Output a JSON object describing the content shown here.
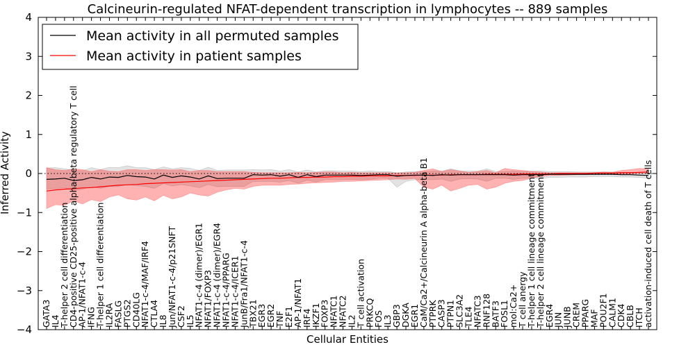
{
  "chart_data": {
    "type": "line",
    "title": "Calcineurin-regulated NFAT-dependent transcription in lymphocytes -- 889 samples",
    "xlabel": "Cellular Entities",
    "ylabel": "Inferred Activity",
    "ylim": [
      -4,
      4
    ],
    "yticks": [
      -4,
      -3,
      -2,
      -1,
      0,
      1,
      2,
      3,
      4
    ],
    "yticklabels": [
      "−4",
      "−3",
      "−2",
      "−1",
      "0",
      "1",
      "2",
      "3",
      "4"
    ],
    "grid": false,
    "legend_position": "top-left",
    "categories": [
      "GATA3",
      "IL4",
      "T-helper 2 cell differentiation",
      "CD4-positive CD25-positive alpha-beta regulatory T cell",
      "AP-1/NFAT1-c-4",
      "IFNG",
      "T-helper 1 cell differentiation",
      "IL2RA",
      "FASLG",
      "PTGS2",
      "CD40LG",
      "NFAT1-c-4/MAF/IRF4",
      "CTLA4",
      "IL8",
      "Jun/NFAT1-c-4/p21SNFT",
      "CSF2",
      "IL5",
      "NFAT1-c-4 (dimer)/EGR1",
      "NFAT1/FOXP3",
      "NFAT1-c-4 (dimer)/EGR4",
      "NFAT1-c-4/PPARG",
      "NFAT1-c-4/ICER1",
      "JunB/Fra1/NFAT1-c-4",
      "TBX21",
      "EGR3",
      "EGR2",
      "TNF",
      "E2F1",
      "AP-1/NFAT1",
      "IRF4",
      "IKZF1",
      "FOXP3",
      "NFATC1",
      "NFATC2",
      "IL2",
      "T cell activation",
      "PRKCQ",
      "FOS",
      "IL3",
      "GBP3",
      "DGKA",
      "EGR1",
      "CaM/Ca2+/Calcineurin A alpha-beta B1",
      "PTPRK",
      "CASP3",
      "PTPN1",
      "SLC3A2",
      "TLE4",
      "NFATC3",
      "RNF128",
      "BATF3",
      "FOSL1",
      "mol:Ca2+",
      "T cell anergy",
      "T-helper 1 cell lineage commitment",
      "T-helper 2 cell lineage commitment",
      "EGR4",
      "JUN",
      "JUNB",
      "CREM",
      "PPARG",
      "MAF",
      "POU2F1",
      "CALM1",
      "CDK4",
      "CBLB",
      "ITCH",
      "activation-induced cell death of T cells"
    ],
    "series": [
      {
        "name": "Mean activity in all permuted samples",
        "color": "#000000",
        "values": [
          -0.15,
          -0.14,
          -0.12,
          -0.18,
          -0.16,
          -0.1,
          -0.14,
          -0.09,
          -0.1,
          -0.05,
          -0.08,
          -0.09,
          -0.14,
          -0.04,
          -0.1,
          -0.06,
          -0.09,
          -0.14,
          -0.06,
          -0.13,
          -0.12,
          -0.12,
          -0.12,
          -0.03,
          -0.04,
          -0.03,
          -0.07,
          -0.03,
          -0.1,
          -0.03,
          -0.08,
          -0.04,
          -0.04,
          -0.04,
          -0.04,
          -0.05,
          -0.04,
          -0.03,
          -0.03,
          -0.07,
          -0.05,
          -0.04,
          -0.04,
          -0.05,
          -0.03,
          -0.04,
          -0.03,
          -0.03,
          -0.03,
          -0.03,
          -0.03,
          -0.03,
          -0.04,
          -0.03,
          -0.03,
          -0.03,
          -0.02,
          -0.02,
          -0.02,
          -0.02,
          -0.02,
          -0.02,
          -0.02,
          -0.02,
          -0.03,
          -0.03,
          -0.04,
          -0.05
        ],
        "upper": [
          0.14,
          0.15,
          0.12,
          0.08,
          0.07,
          0.15,
          0.1,
          0.16,
          0.15,
          0.2,
          0.15,
          0.15,
          0.1,
          0.17,
          0.12,
          0.15,
          0.13,
          0.08,
          0.16,
          0.08,
          0.09,
          0.09,
          0.09,
          0.1,
          0.09,
          0.1,
          0.06,
          0.1,
          0.04,
          0.09,
          0.04,
          0.07,
          0.07,
          0.06,
          0.06,
          0.05,
          0.06,
          0.05,
          0.05,
          0.02,
          0.04,
          0.05,
          0.05,
          0.06,
          0.06,
          0.12,
          0.07,
          0.06,
          0.06,
          0.12,
          0.05,
          0.05,
          0.06,
          0.05,
          0.06,
          0.06,
          0.05,
          0.05,
          0.05,
          0.04,
          0.04,
          0.04,
          0.04,
          0.04,
          0.03,
          0.03,
          0.02,
          0.01
        ],
        "lower": [
          -0.4,
          -0.38,
          -0.36,
          -0.44,
          -0.4,
          -0.34,
          -0.38,
          -0.33,
          -0.33,
          -0.28,
          -0.31,
          -0.33,
          -0.38,
          -0.26,
          -0.32,
          -0.28,
          -0.32,
          -0.36,
          -0.28,
          -0.34,
          -0.33,
          -0.33,
          -0.33,
          -0.2,
          -0.2,
          -0.2,
          -0.22,
          -0.18,
          -0.25,
          -0.17,
          -0.22,
          -0.16,
          -0.16,
          -0.16,
          -0.15,
          -0.16,
          -0.15,
          -0.12,
          -0.12,
          -0.35,
          -0.2,
          -0.16,
          -0.16,
          -0.16,
          -0.14,
          -0.2,
          -0.14,
          -0.13,
          -0.14,
          -0.2,
          -0.12,
          -0.12,
          -0.15,
          -0.12,
          -0.12,
          -0.13,
          -0.1,
          -0.1,
          -0.09,
          -0.09,
          -0.09,
          -0.08,
          -0.08,
          -0.08,
          -0.09,
          -0.09,
          -0.1,
          -0.12
        ]
      },
      {
        "name": "Mean activity in patient samples",
        "color": "#ff0000",
        "values": [
          -0.45,
          -0.42,
          -0.4,
          -0.39,
          -0.37,
          -0.36,
          -0.34,
          -0.32,
          -0.3,
          -0.29,
          -0.28,
          -0.26,
          -0.25,
          -0.24,
          -0.23,
          -0.22,
          -0.21,
          -0.2,
          -0.19,
          -0.18,
          -0.17,
          -0.16,
          -0.15,
          -0.14,
          -0.13,
          -0.12,
          -0.12,
          -0.11,
          -0.1,
          -0.1,
          -0.09,
          -0.09,
          -0.08,
          -0.08,
          -0.07,
          -0.07,
          -0.06,
          -0.06,
          -0.06,
          -0.05,
          -0.05,
          -0.05,
          -0.04,
          -0.04,
          -0.04,
          -0.03,
          -0.03,
          -0.03,
          -0.03,
          -0.02,
          -0.02,
          -0.02,
          -0.02,
          -0.01,
          -0.01,
          -0.01,
          -0.01,
          0.0,
          0.0,
          0.0,
          0.0,
          0.01,
          0.01,
          0.01,
          0.02,
          0.02,
          0.03,
          0.04
        ],
        "upper": [
          0.15,
          0.1,
          0.08,
          0.12,
          0.1,
          0.05,
          0.1,
          0.06,
          0.05,
          0.1,
          0.1,
          0.08,
          0.1,
          0.1,
          0.09,
          0.1,
          0.05,
          0.08,
          0.08,
          0.05,
          0.05,
          0.05,
          0.05,
          0.03,
          0.02,
          0.02,
          0.02,
          0.02,
          0.03,
          0.02,
          0.03,
          0.04,
          0.04,
          0.02,
          0.03,
          0.02,
          0.02,
          0.02,
          0.02,
          0.01,
          0.02,
          0.03,
          0.08,
          0.12,
          0.05,
          0.1,
          0.06,
          0.03,
          0.05,
          0.08,
          0.02,
          0.13,
          0.1,
          0.08,
          0.05,
          0.04,
          0.02,
          0.02,
          0.02,
          0.02,
          0.02,
          0.02,
          0.04,
          0.03,
          0.08,
          0.1,
          0.13,
          0.12
        ],
        "lower": [
          -0.9,
          -0.8,
          -0.82,
          -0.7,
          -0.78,
          -0.67,
          -0.72,
          -0.6,
          -0.55,
          -0.65,
          -0.68,
          -0.6,
          -0.7,
          -0.56,
          -0.65,
          -0.6,
          -0.5,
          -0.55,
          -0.58,
          -0.48,
          -0.42,
          -0.38,
          -0.4,
          -0.33,
          -0.3,
          -0.3,
          -0.3,
          -0.28,
          -0.27,
          -0.25,
          -0.24,
          -0.23,
          -0.22,
          -0.2,
          -0.2,
          -0.19,
          -0.18,
          -0.17,
          -0.16,
          -0.14,
          -0.15,
          -0.13,
          -0.35,
          -0.4,
          -0.3,
          -0.45,
          -0.38,
          -0.3,
          -0.28,
          -0.4,
          -0.35,
          -0.25,
          -0.2,
          -0.18,
          -0.12,
          -0.08,
          -0.05,
          -0.05,
          -0.04,
          -0.03,
          -0.03,
          -0.02,
          -0.02,
          -0.02,
          -0.01,
          -0.01,
          0.0,
          0.0
        ]
      }
    ],
    "baseline": 0
  }
}
